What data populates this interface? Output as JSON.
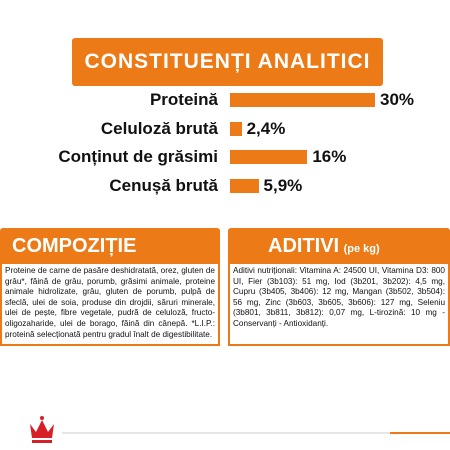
{
  "header": {
    "title": "CONSTITUENȚI ANALITICI"
  },
  "chart_data": {
    "type": "bar",
    "orientation": "horizontal",
    "categories": [
      "Proteină",
      "Celuloză brută",
      "Conținut de grăsimi",
      "Cenușă brută"
    ],
    "values": [
      30,
      2.4,
      16,
      5.9
    ],
    "value_labels": [
      "30%",
      "2,4%",
      "16%",
      "5,9%"
    ],
    "color": "#ec7a16"
  },
  "composition": {
    "title": "COMPOZIȚIE",
    "text": "Proteine de carne de pasăre deshidratată, orez, gluten de grâu*, făină de grâu, porumb, grăsimi animale, proteine animale hidrolizate, grâu, gluten de porumb, pulpă de sfeclă, ulei de soia, produse din drojdii, săruri minerale, ulei de pește, fibre vegetale, pudră de celuloză, fructo-oligozaharide, ulei de borago, făină din cânepă. *L.I.P.: proteină selecționată pentru gradul înalt de digestibilitate."
  },
  "additives": {
    "title": "ADITIVI",
    "unit": "(pe kg)",
    "text": "Aditivi nutriționali: Vitamina A: 24500 UI, Vitamina D3: 800 UI, Fier (3b103): 51 mg, Iod (3b201, 3b202): 4,5 mg, Cupru (3b405, 3b406): 12 mg, Mangan (3b502, 3b504): 56 mg, Zinc (3b603, 3b605, 3b606): 127 mg, Seleniu (3b801, 3b811, 3b812): 0,07 mg, L-tirozină: 10 mg - Conservanți - Antioxidanți."
  }
}
